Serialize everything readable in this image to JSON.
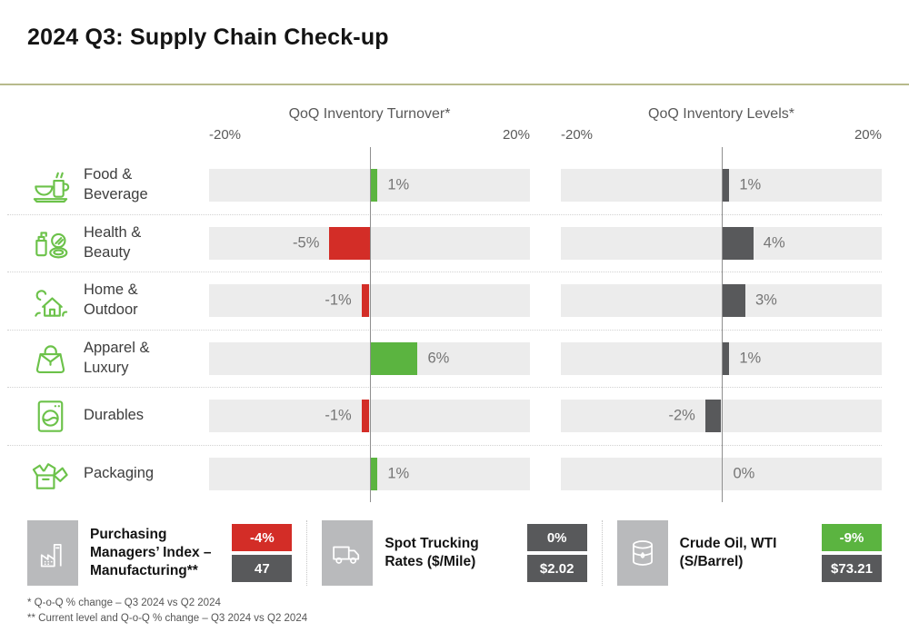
{
  "page": {
    "title": "2024 Q3: Supply Chain Check-up"
  },
  "colors": {
    "green": "#5bb440",
    "red": "#d32d27",
    "dark_gray": "#58595b",
    "track_gray": "#ececec",
    "icon_green": "#6cc24a",
    "title_rule_olive": "#b7ba8c"
  },
  "charts": [
    {
      "title": "QoQ Inventory Turnover*",
      "axis_min_label": "-20%",
      "axis_max_label": "20%"
    },
    {
      "title": "QoQ Inventory Levels*",
      "axis_min_label": "-20%",
      "axis_max_label": "20%"
    }
  ],
  "chart_data": {
    "type": "bar",
    "orientation": "horizontal_diverging",
    "title": "2024 Q3: Supply Chain Check-up",
    "categories": [
      "Food & Beverage",
      "Health & Beauty",
      "Home & Outdoor",
      "Apparel & Luxury",
      "Durables",
      "Packaging"
    ],
    "series": [
      {
        "name": "QoQ Inventory Turnover*",
        "unit": "%",
        "values": [
          1,
          -5,
          -1,
          6,
          -1,
          1
        ],
        "positive_color": "green",
        "negative_color": "red"
      },
      {
        "name": "QoQ Inventory Levels*",
        "unit": "%",
        "values": [
          1,
          4,
          3,
          1,
          -2,
          0
        ],
        "positive_color": "dark_gray",
        "negative_color": "dark_gray"
      }
    ],
    "xlim": [
      -20,
      20
    ],
    "axis_tick_labels": [
      "-20%",
      "20%"
    ],
    "grid": false,
    "legend": false
  },
  "rows": [
    {
      "label": "Food &\nBeverage",
      "icon": "food-beverage-icon"
    },
    {
      "label": "Health &\nBeauty",
      "icon": "health-beauty-icon"
    },
    {
      "label": "Home &\nOutdoor",
      "icon": "home-outdoor-icon"
    },
    {
      "label": "Apparel &\nLuxury",
      "icon": "apparel-luxury-icon"
    },
    {
      "label": "Durables",
      "icon": "durables-icon"
    },
    {
      "label": "Packaging",
      "icon": "packaging-icon"
    }
  ],
  "kpis": [
    {
      "icon": "factory-icon",
      "label": "Purchasing\nManagers’ Index –\nManufacturing**",
      "badges": [
        {
          "text": "-4%",
          "color": "red"
        },
        {
          "text": "47",
          "color": "dark"
        }
      ]
    },
    {
      "icon": "truck-icon",
      "label": "Spot Trucking\nRates ($/Mile)",
      "badges": [
        {
          "text": "0%",
          "color": "dark"
        },
        {
          "text": "$2.02",
          "color": "dark"
        }
      ]
    },
    {
      "icon": "oil-barrel-icon",
      "label": "Crude Oil, WTI\n(S/Barrel)",
      "badges": [
        {
          "text": "-9%",
          "color": "green"
        },
        {
          "text": "$73.21",
          "color": "dark"
        }
      ]
    }
  ],
  "footnotes": [
    "* Q-o-Q % change – Q3 2024 vs Q2 2024",
    "** Current level and Q-o-Q % change – Q3 2024 vs Q2 2024"
  ]
}
